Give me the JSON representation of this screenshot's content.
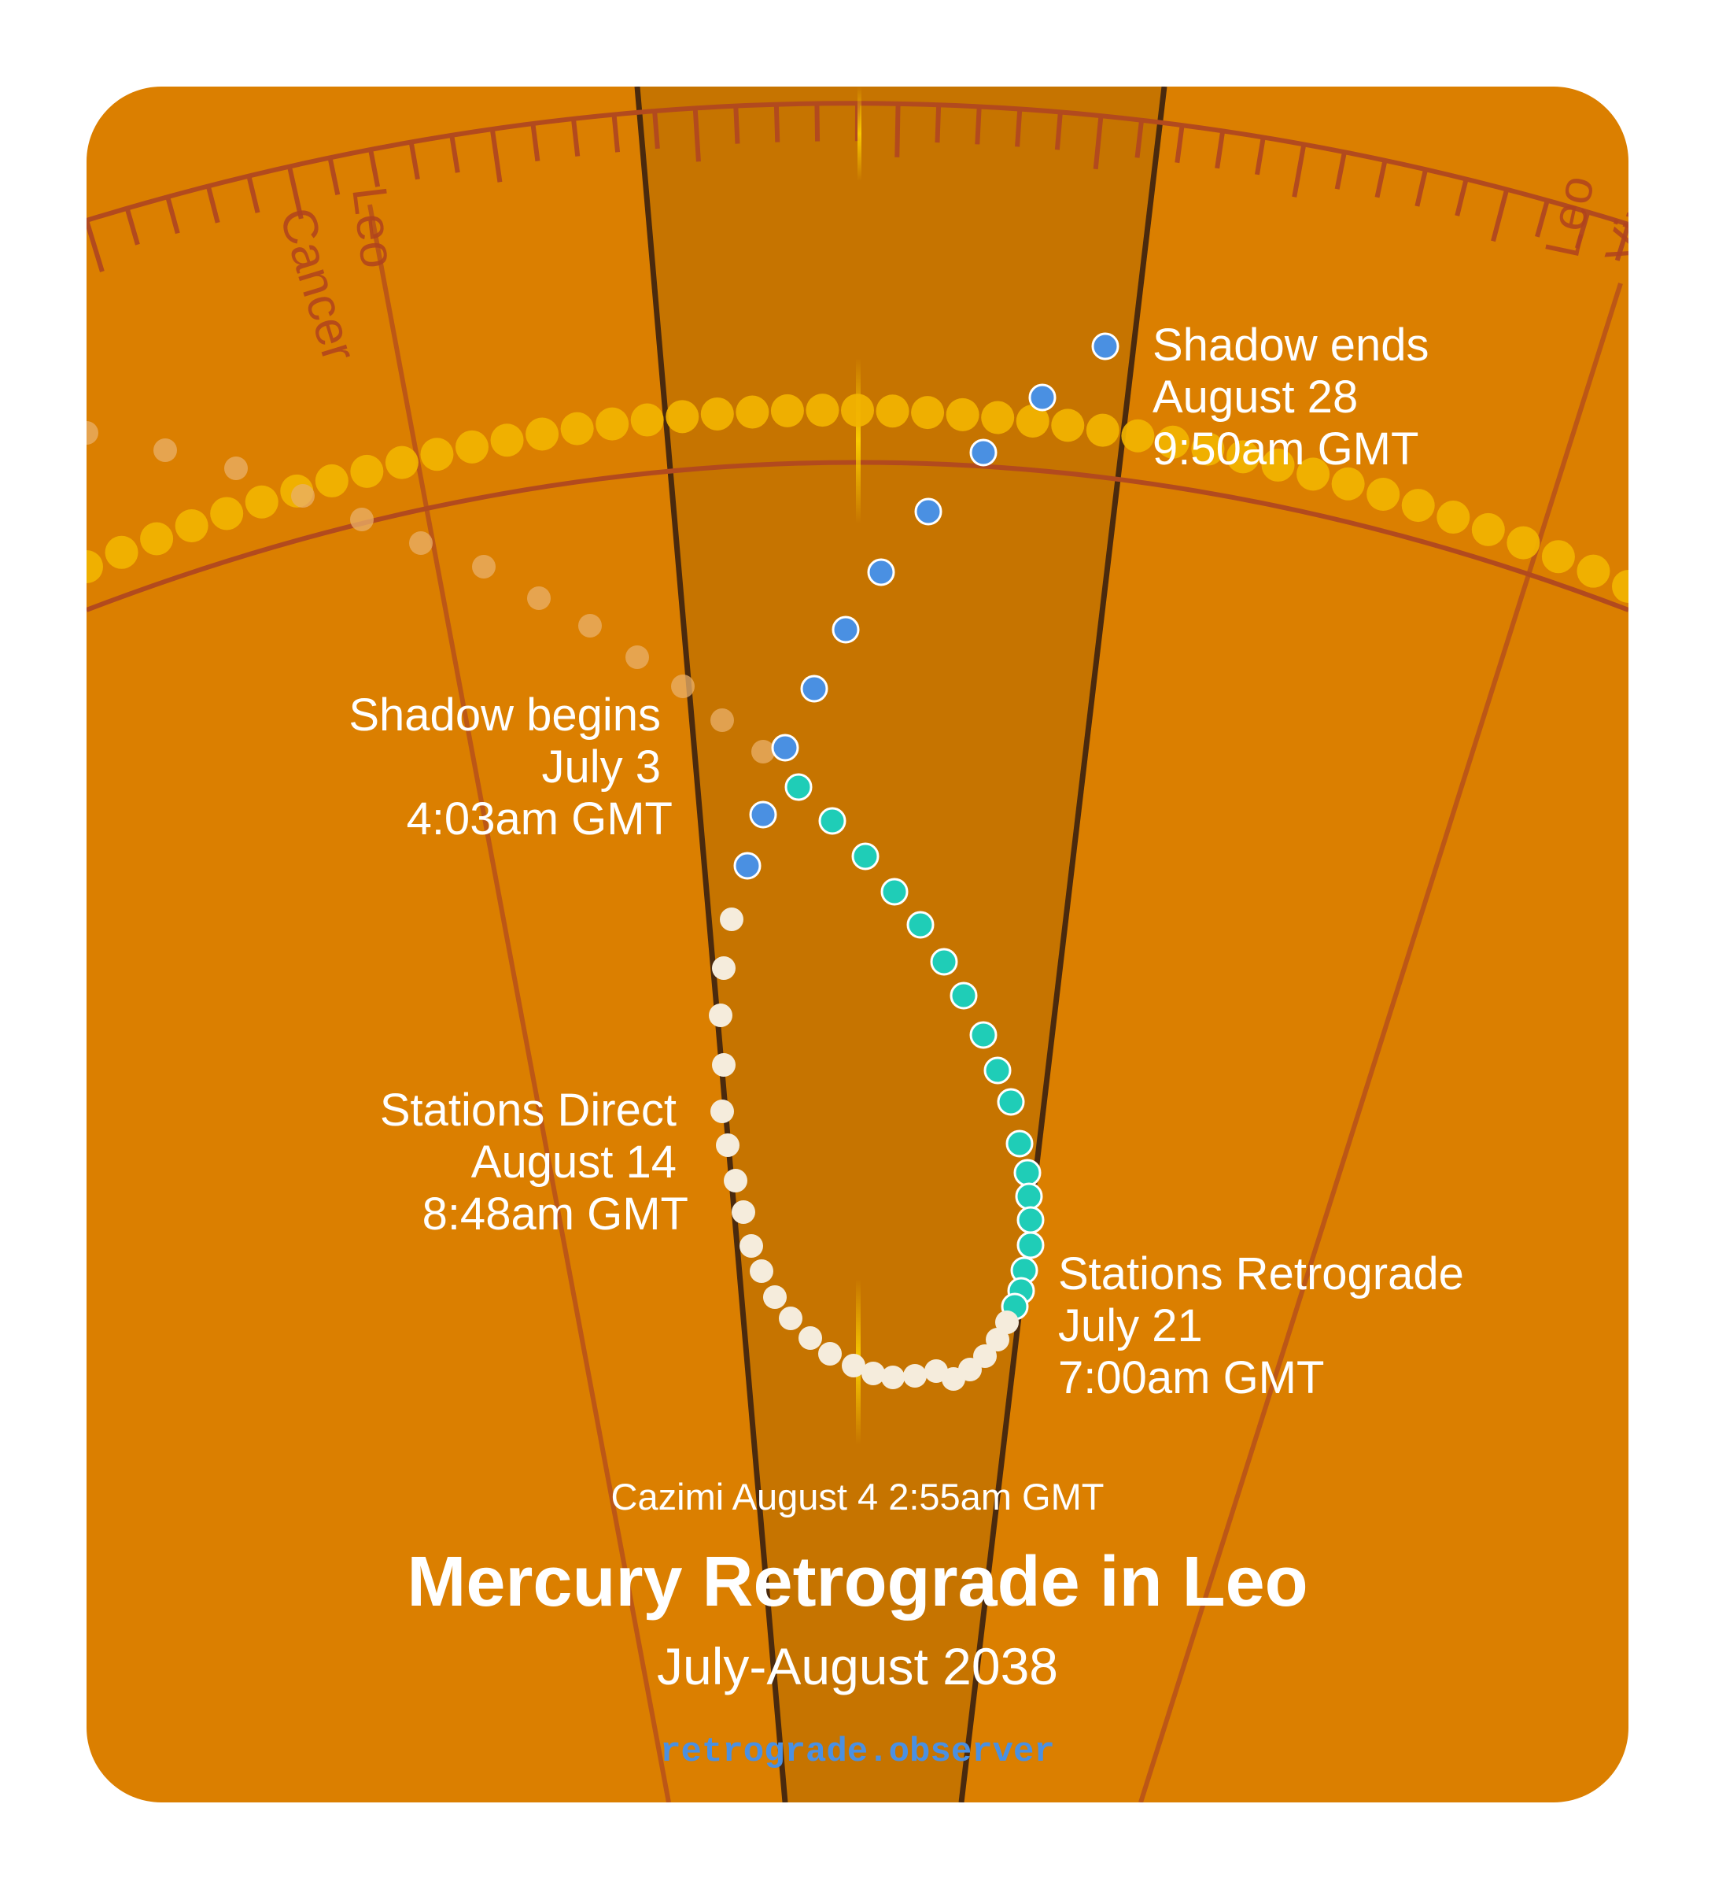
{
  "colors": {
    "background": "#db7f00",
    "shadow_zone": "#c67400",
    "zone_border": "#4a2a0e",
    "ecliptic_line": "#b24a1e",
    "sun_path": "#f2b400",
    "pre_shadow_dot": "#e9b06a",
    "shadow_begin_dot": "#1fcdb7",
    "retrograde_dot": "#f5ecdc",
    "shadow_end_dot": "#4a90e2",
    "text": "#ffffff",
    "website": "#4a90e2"
  },
  "signs": {
    "leo_left": "Leo",
    "cancer": "Cancer",
    "leo_right": "Leo",
    "virgo_partial": "Virgo"
  },
  "events": {
    "shadow_begins": {
      "title": "Shadow begins",
      "date": "July 3",
      "time": "4:03am GMT"
    },
    "stations_retrograde": {
      "title": "Stations Retrograde",
      "date": "July 21",
      "time": "7:00am GMT"
    },
    "stations_direct": {
      "title": "Stations Direct",
      "date": "August 14",
      "time": "8:48am GMT"
    },
    "shadow_ends": {
      "title": "Shadow ends",
      "date": "August 28",
      "time": "9:50am GMT"
    }
  },
  "cazimi": "Cazimi August 4 2:55am GMT",
  "title": "Mercury Retrograde in Leo",
  "subtitle": "July-August 2038",
  "website": "retrograde.observer",
  "phases": [
    {
      "phase": "pre-shadow",
      "dot_count": 13
    },
    {
      "phase": "shadow-begins-to-station-retrograde",
      "dot_count": 18
    },
    {
      "phase": "retrograde",
      "dot_count": 24
    },
    {
      "phase": "station-direct-to-shadow-end",
      "dot_count": 17
    }
  ]
}
